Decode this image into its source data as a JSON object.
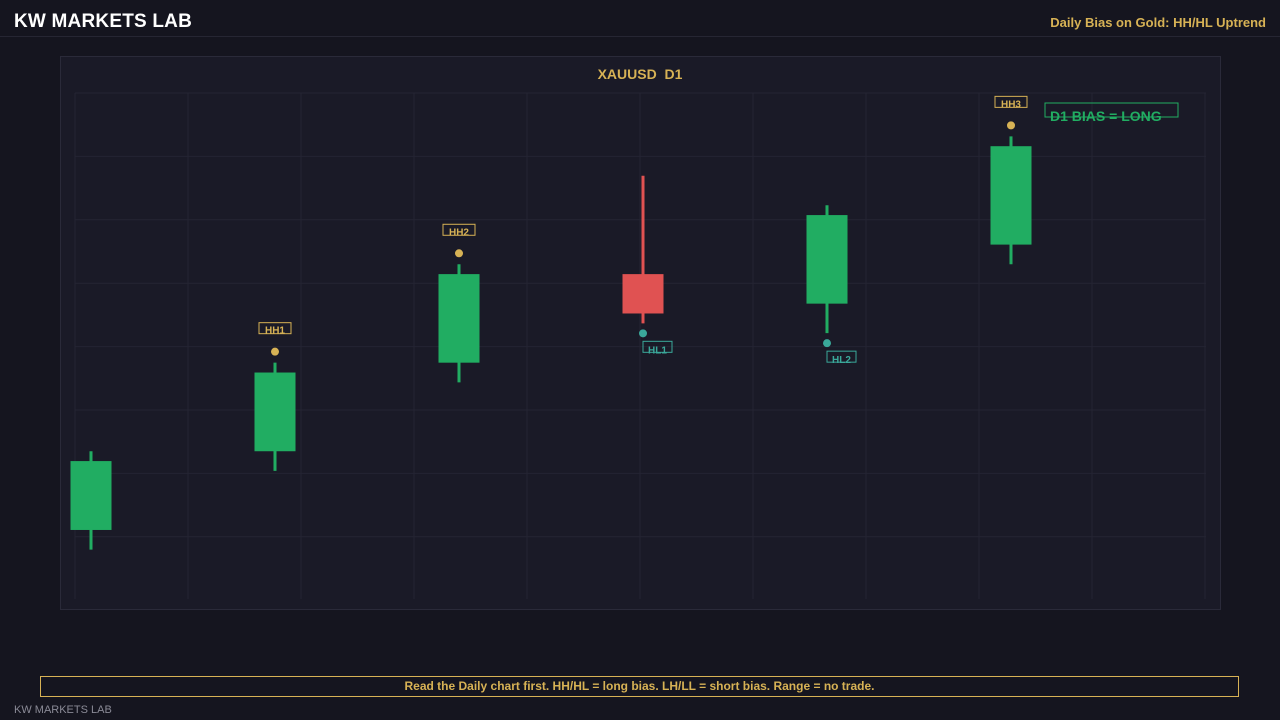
{
  "header": {
    "brand": "KW MARKETS LAB",
    "note": "Daily Bias on Gold: HH/HL Uptrend"
  },
  "footer": {
    "message": "Read the Daily chart first. HH/HL = long bias. LH/LL = short bias. Range = no trade.",
    "brand": "KW MARKETS LAB"
  },
  "colors": {
    "bull": "#21ad62",
    "bear": "#e05252",
    "hh": "#d7b255",
    "hl": "#3aa89a",
    "grid": "#242433"
  },
  "chart_data": {
    "type": "candlestick",
    "title": "XAUUSD  D1",
    "annotation": "D1 BIAS = LONG",
    "ylim": [
      0,
      100
    ],
    "grid": true,
    "candles": [
      {
        "open": 12,
        "close": 26,
        "high": 28,
        "low": 8
      },
      {
        "open": 28,
        "close": 44,
        "high": 46,
        "low": 24
      },
      {
        "open": 46,
        "close": 64,
        "high": 66,
        "low": 42
      },
      {
        "open": 64,
        "close": 56,
        "high": 84,
        "low": 54
      },
      {
        "open": 58,
        "close": 76,
        "high": 78,
        "low": 52
      },
      {
        "open": 70,
        "close": 90,
        "high": 92,
        "low": 66
      }
    ],
    "markers": [
      {
        "candle": 1,
        "label": "HH1",
        "type": "hh"
      },
      {
        "candle": 2,
        "label": "HH2",
        "type": "hh"
      },
      {
        "candle": 3,
        "label": "HL1",
        "type": "hl"
      },
      {
        "candle": 4,
        "label": "HL2",
        "type": "hl"
      },
      {
        "candle": 5,
        "label": "HH3",
        "type": "hh"
      }
    ]
  }
}
